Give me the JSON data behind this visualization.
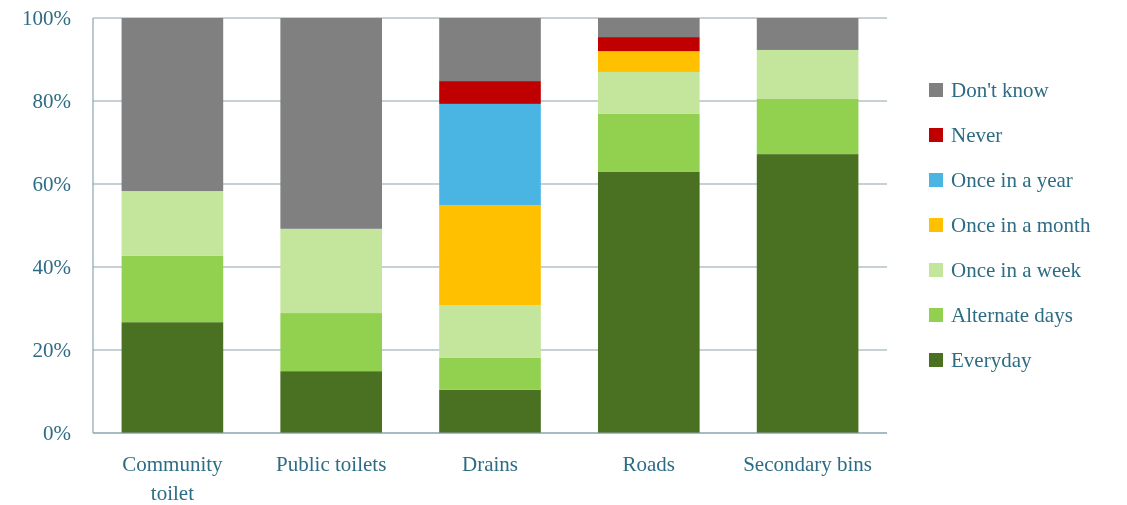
{
  "chart_data": {
    "type": "bar",
    "stacked": true,
    "categories": [
      "Community toilet",
      "Public toilets",
      "Drains",
      "Roads",
      "Secondary bins"
    ],
    "series": [
      {
        "name": "Everyday",
        "color": "#4a7022",
        "values": [
          26.7,
          14.9,
          10.4,
          62.9,
          67.2
        ]
      },
      {
        "name": "Alternate days",
        "color": "#92d050",
        "values": [
          16,
          14,
          7.7,
          14,
          13.3
        ]
      },
      {
        "name": "Once in a week",
        "color": "#c3e59c",
        "values": [
          15.6,
          20.3,
          12.7,
          10.1,
          11.8
        ]
      },
      {
        "name": "Once in a month",
        "color": "#ffc000",
        "values": [
          null,
          null,
          24.1,
          5,
          null
        ]
      },
      {
        "name": "Once in a year",
        "color": "#4ab5e3",
        "values": [
          null,
          null,
          24.4,
          null,
          null
        ]
      },
      {
        "name": "Never",
        "color": "#c00000",
        "values": [
          null,
          null,
          5.5,
          3.4,
          null
        ]
      },
      {
        "name": "Don't know",
        "color": "#808080",
        "values": [
          41.7,
          50.8,
          15.2,
          4.6,
          7.7
        ]
      }
    ],
    "ylim": [
      0,
      100
    ],
    "yticks": [
      {
        "value": 0,
        "label": "0%"
      },
      {
        "value": 20,
        "label": "20%"
      },
      {
        "value": 40,
        "label": "40%"
      },
      {
        "value": 60,
        "label": "60%"
      },
      {
        "value": 80,
        "label": "80%"
      },
      {
        "value": 100,
        "label": "100%"
      }
    ],
    "grid": "y",
    "legend": "right"
  }
}
